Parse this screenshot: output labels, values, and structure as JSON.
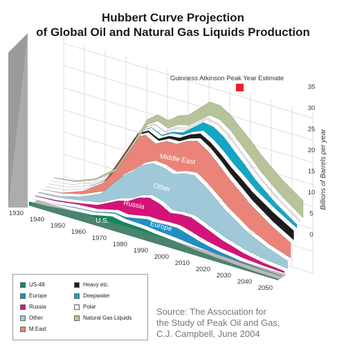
{
  "title_line1": "Hubbert Curve Projection",
  "title_line2": "of Global Oil and Natural Gas Liquids Production",
  "source_lines": [
    "Source: The Association for",
    "the Study of Peak Oil and Gas,",
    "C.J. Campbell, June 2004"
  ],
  "annotation": "Guinness Atkinson Peak Year Estimate",
  "colors": {
    "us48": "#0e8a5a",
    "europe": "#1f8fc4",
    "russia": "#d4137a",
    "other": "#9fc9d8",
    "meast": "#ea8478",
    "heavy": "#1c1c1c",
    "deepwater": "#12a6c6",
    "polar": "#f0f0f0",
    "ngl": "#b7c49a",
    "peak_marker": "#e8202a"
  },
  "legend": [
    {
      "key": "us48",
      "label": "US-48"
    },
    {
      "key": "heavy",
      "label": "Heavy etc."
    },
    {
      "key": "europe",
      "label": "Europe"
    },
    {
      "key": "deepwater",
      "label": "Deepwater"
    },
    {
      "key": "russia",
      "label": "Russia"
    },
    {
      "key": "polar",
      "label": "Polar"
    },
    {
      "key": "other",
      "label": "Other"
    },
    {
      "key": "ngl",
      "label": "Natural Gas Liquids"
    },
    {
      "key": "meast",
      "label": "M.East"
    }
  ],
  "chart_data": {
    "type": "area",
    "title": "Hubbert Curve Projection of Global Oil and Natural Gas Liquids Production",
    "ylabel": "Billions of Barrels per year",
    "ylim": [
      0,
      35
    ],
    "yticks": [
      0,
      5,
      10,
      15,
      20,
      25,
      30,
      35
    ],
    "xlim": [
      1930,
      2050
    ],
    "xticks": [
      1930,
      1940,
      1950,
      1960,
      1970,
      1980,
      1990,
      2000,
      2010,
      2020,
      2030,
      2040,
      2050
    ],
    "x": [
      1930,
      1940,
      1950,
      1960,
      1970,
      1975,
      1980,
      1985,
      1990,
      1995,
      2000,
      2005,
      2010,
      2015,
      2020,
      2025,
      2030,
      2040,
      2050
    ],
    "series": [
      {
        "key": "us48",
        "name": "US-48",
        "area_label": "U.S.",
        "values": [
          0.9,
          1.2,
          1.8,
          2.2,
          3.3,
          2.8,
          2.7,
          2.6,
          2.3,
          2.1,
          1.9,
          1.6,
          1.3,
          1.1,
          0.9,
          0.8,
          0.6,
          0.4,
          0.3
        ]
      },
      {
        "key": "europe",
        "name": "Europe",
        "area_label": "Europe",
        "values": [
          0.0,
          0.0,
          0.1,
          0.1,
          0.2,
          0.4,
          1.0,
          1.6,
          1.8,
          2.2,
          2.4,
          2.0,
          1.5,
          1.1,
          0.8,
          0.6,
          0.4,
          0.2,
          0.1
        ]
      },
      {
        "key": "russia",
        "name": "Russia",
        "area_label": "Russia",
        "values": [
          0.1,
          0.2,
          0.3,
          0.9,
          2.2,
          3.2,
          4.2,
          4.4,
          3.8,
          2.2,
          2.6,
          3.3,
          3.1,
          2.6,
          2.0,
          1.6,
          1.2,
          0.7,
          0.4
        ]
      },
      {
        "key": "other",
        "name": "Other",
        "area_label": "Other",
        "values": [
          0.2,
          0.3,
          0.8,
          2.0,
          5.0,
          6.2,
          7.0,
          7.5,
          8.0,
          8.5,
          9.0,
          9.3,
          8.6,
          7.6,
          6.5,
          5.5,
          4.5,
          3.0,
          1.8
        ]
      },
      {
        "key": "meast",
        "name": "M.East",
        "area_label": "Middle East",
        "values": [
          0.0,
          0.1,
          0.7,
          2.0,
          5.0,
          7.5,
          6.5,
          4.0,
          5.5,
          6.5,
          7.0,
          7.5,
          7.6,
          7.4,
          7.0,
          6.5,
          6.0,
          4.8,
          3.6
        ]
      },
      {
        "key": "heavy",
        "name": "Heavy etc.",
        "values": [
          0.0,
          0.0,
          0.0,
          0.1,
          0.2,
          0.3,
          0.4,
          0.5,
          0.6,
          0.8,
          0.9,
          1.1,
          1.3,
          1.5,
          1.7,
          1.9,
          2.0,
          2.2,
          2.2
        ]
      },
      {
        "key": "deepwater",
        "name": "Deepwater",
        "values": [
          0.0,
          0.0,
          0.0,
          0.0,
          0.0,
          0.0,
          0.1,
          0.2,
          0.3,
          0.6,
          1.0,
          2.0,
          3.0,
          3.4,
          3.2,
          2.7,
          2.2,
          1.4,
          0.8
        ]
      },
      {
        "key": "polar",
        "name": "Polar",
        "values": [
          0.0,
          0.0,
          0.0,
          0.0,
          0.1,
          0.1,
          0.2,
          0.3,
          0.4,
          0.4,
          0.4,
          0.4,
          0.4,
          0.4,
          0.4,
          0.4,
          0.4,
          0.3,
          0.3
        ]
      },
      {
        "key": "ngl",
        "name": "Natural Gas Liquids",
        "values": [
          0.1,
          0.2,
          0.3,
          0.6,
          1.0,
          1.2,
          1.5,
          1.8,
          2.1,
          2.4,
          2.8,
          3.1,
          3.4,
          3.6,
          3.8,
          4.0,
          4.0,
          4.0,
          4.0
        ]
      }
    ],
    "peak_estimate_year": 2014,
    "grid": true,
    "legend_position": "bottom-left"
  }
}
